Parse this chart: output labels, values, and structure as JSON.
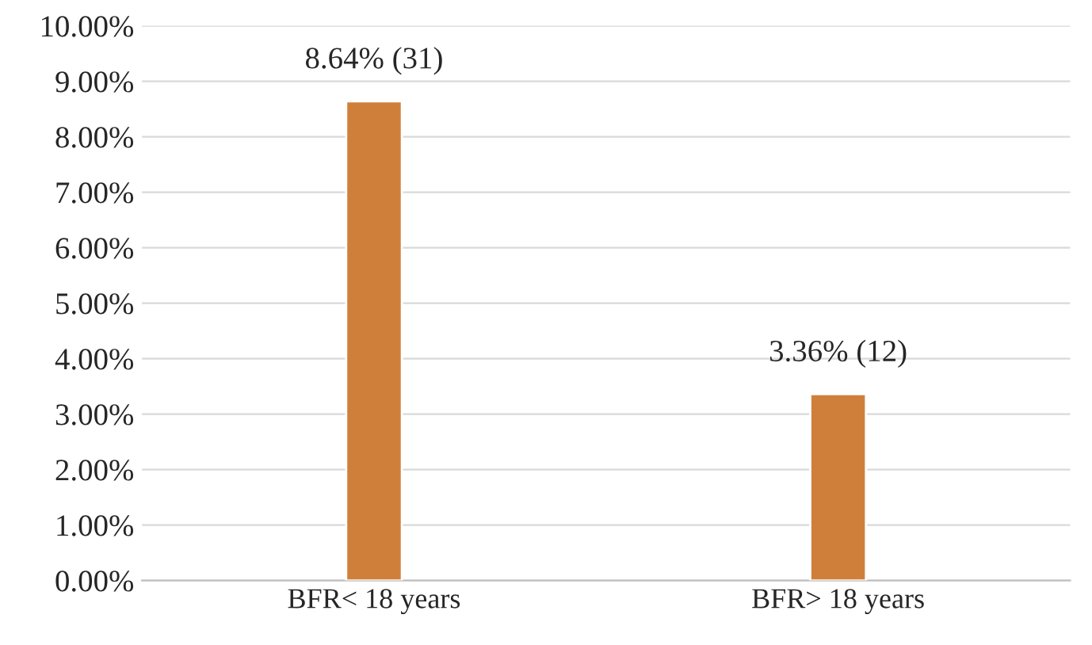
{
  "chart_data": {
    "type": "bar",
    "categories": [
      "BFR< 18 years",
      "BFR> 18 years"
    ],
    "values": [
      8.64,
      3.36
    ],
    "color": "#d07f3a",
    "value_labels": [
      "8.64% (31)",
      "3.36% (12)"
    ],
    "ylim": [
      0,
      10
    ],
    "yticks": [
      {
        "value": 0,
        "label": "0.00%"
      },
      {
        "value": 1,
        "label": "1.00%"
      },
      {
        "value": 2,
        "label": "2.00%"
      },
      {
        "value": 3,
        "label": "3.00%"
      },
      {
        "value": 4,
        "label": "4.00%"
      },
      {
        "value": 5,
        "label": "5.00%"
      },
      {
        "value": 6,
        "label": "6.00%"
      },
      {
        "value": 7,
        "label": "7.00%"
      },
      {
        "value": 8,
        "label": "8.00%"
      },
      {
        "value": 9,
        "label": "9.00%"
      },
      {
        "value": 10,
        "label": "10.00%"
      }
    ],
    "grid": "y",
    "legend": false
  }
}
